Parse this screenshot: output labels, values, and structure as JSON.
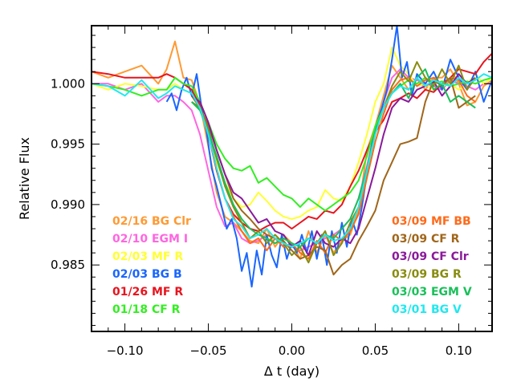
{
  "chart_data": {
    "type": "line",
    "title": "",
    "xlabel": "Δ t (day)",
    "ylabel": "Relative Flux",
    "xlim": [
      -0.12,
      0.12
    ],
    "ylim": [
      0.9795,
      1.0048
    ],
    "xticks": [
      -0.1,
      -0.05,
      0.0,
      0.05,
      0.1
    ],
    "xtick_labels": [
      "−0.10",
      "−0.05",
      "0.00",
      "0.05",
      "0.10"
    ],
    "yticks": [
      0.985,
      0.99,
      0.995,
      1.0
    ],
    "ytick_labels": [
      "0.985",
      "0.990",
      "0.995",
      "1.000"
    ],
    "grid": false,
    "legend_placement": "inside, bottom-left and bottom-right columns",
    "series": [
      {
        "name": "02/16 BG Clr",
        "color": "#ff9a33",
        "column": "left",
        "x": [
          -0.12,
          -0.11,
          -0.1,
          -0.09,
          -0.08,
          -0.075,
          -0.07,
          -0.065,
          -0.06,
          -0.055,
          -0.05,
          -0.045,
          -0.04,
          -0.035,
          -0.03,
          -0.025,
          -0.02,
          -0.015,
          -0.01,
          -0.005,
          0.0,
          0.005,
          0.01,
          0.015,
          0.02,
          0.025,
          0.03,
          0.035,
          0.04,
          0.045,
          0.05,
          0.055,
          0.06,
          0.065,
          0.07,
          0.075,
          0.08,
          0.085,
          0.09,
          0.095,
          0.1,
          0.105,
          0.11,
          0.115,
          0.12
        ],
        "y": [
          1.001,
          1.0005,
          1.001,
          1.0015,
          1.0,
          1.0012,
          1.0035,
          1.0005,
          1.0003,
          0.9983,
          0.9948,
          0.991,
          0.989,
          0.9885,
          0.9878,
          0.987,
          0.9868,
          0.988,
          0.9865,
          0.9875,
          0.9868,
          0.9855,
          0.9878,
          0.986,
          0.9875,
          0.986,
          0.987,
          0.9875,
          0.9895,
          0.9945,
          0.9965,
          0.999,
          1.0015,
          1.0005,
          0.9995,
          1.0005,
          0.9995,
          1.0005,
          1.0005,
          1.0012,
          1.0,
          0.9982,
          0.9985,
          0.9998,
          1.0003
        ]
      },
      {
        "name": "02/10 EGM I",
        "color": "#ff66e0",
        "column": "left",
        "x": [
          -0.12,
          -0.11,
          -0.1,
          -0.09,
          -0.08,
          -0.075,
          -0.07,
          -0.065,
          -0.06,
          -0.055,
          -0.05,
          -0.045,
          -0.04,
          -0.035,
          -0.03,
          -0.025,
          -0.02,
          -0.015,
          -0.01,
          -0.005,
          0.0,
          0.005,
          0.01,
          0.015,
          0.02,
          0.025,
          0.03,
          0.035,
          0.04,
          0.045,
          0.05,
          0.055,
          0.06,
          0.065,
          0.07,
          0.075,
          0.08,
          0.085,
          0.09,
          0.095,
          0.1,
          0.105,
          0.11,
          0.115,
          0.12
        ],
        "y": [
          1.0,
          1.0,
          0.9995,
          1.0,
          0.9985,
          0.999,
          0.999,
          0.9985,
          0.9978,
          0.9958,
          0.9928,
          0.9898,
          0.9882,
          0.9885,
          0.9872,
          0.9868,
          0.987,
          0.9875,
          0.9872,
          0.9868,
          0.9865,
          0.9862,
          0.9865,
          0.9868,
          0.9872,
          0.9875,
          0.988,
          0.9888,
          0.9905,
          0.9932,
          0.9962,
          0.9985,
          1.0005,
          1.0012,
          1.0005,
          1.0003,
          1.0,
          0.9998,
          0.9995,
          1.0003,
          1.0,
          0.9998,
          0.9995,
          1.0,
          1.0
        ]
      },
      {
        "name": "02/03 MF R",
        "color": "#ffff33",
        "column": "left",
        "x": [
          -0.12,
          -0.11,
          -0.1,
          -0.09,
          -0.08,
          -0.075,
          -0.07,
          -0.065,
          -0.06,
          -0.055,
          -0.05,
          -0.045,
          -0.04,
          -0.035,
          -0.03,
          -0.025,
          -0.02,
          -0.015,
          -0.01,
          -0.005,
          0.0,
          0.005,
          0.01,
          0.015,
          0.02,
          0.025,
          0.03,
          0.035,
          0.04,
          0.045,
          0.05,
          0.055,
          0.06,
          0.065,
          0.07,
          0.075,
          0.08,
          0.085,
          0.09,
          0.095,
          0.1,
          0.105,
          0.11,
          0.115,
          0.12
        ],
        "y": [
          1.0,
          0.9995,
          1.0,
          0.9998,
          0.9995,
          0.9995,
          1.0,
          0.9995,
          0.9992,
          0.998,
          0.996,
          0.9935,
          0.9918,
          0.9905,
          0.9898,
          0.99,
          0.991,
          0.9903,
          0.9895,
          0.989,
          0.9888,
          0.989,
          0.9895,
          0.9898,
          0.9912,
          0.9905,
          0.9903,
          0.9915,
          0.9935,
          0.9958,
          0.9985,
          1.0,
          1.003,
          1.0015,
          1.0008,
          0.9998,
          1.0,
          0.9995,
          0.9998,
          1.0,
          0.9995,
          1.0,
          1.0008,
          1.0,
          1.0005
        ]
      },
      {
        "name": "02/03 BG B",
        "color": "#1a66ff",
        "column": "left",
        "x": [
          -0.075,
          -0.072,
          -0.069,
          -0.066,
          -0.063,
          -0.06,
          -0.057,
          -0.054,
          -0.051,
          -0.048,
          -0.045,
          -0.042,
          -0.039,
          -0.036,
          -0.033,
          -0.03,
          -0.027,
          -0.024,
          -0.021,
          -0.018,
          -0.015,
          -0.012,
          -0.009,
          -0.006,
          -0.003,
          0.0,
          0.003,
          0.006,
          0.009,
          0.012,
          0.015,
          0.018,
          0.021,
          0.024,
          0.027,
          0.03,
          0.033,
          0.036,
          0.039,
          0.042,
          0.045,
          0.048,
          0.051,
          0.054,
          0.057,
          0.06,
          0.063,
          0.066,
          0.069,
          0.072,
          0.075,
          0.08,
          0.085,
          0.09,
          0.095,
          0.1,
          0.105,
          0.11,
          0.115,
          0.12
        ],
        "y": [
          0.9985,
          0.9992,
          0.9978,
          0.9995,
          1.0005,
          0.999,
          1.0008,
          0.998,
          0.996,
          0.993,
          0.9915,
          0.9898,
          0.988,
          0.9888,
          0.9872,
          0.9845,
          0.986,
          0.9832,
          0.9862,
          0.9842,
          0.9875,
          0.9858,
          0.9848,
          0.9875,
          0.9855,
          0.9868,
          0.986,
          0.9875,
          0.986,
          0.9878,
          0.9855,
          0.9875,
          0.985,
          0.9878,
          0.986,
          0.9885,
          0.9865,
          0.9888,
          0.9875,
          0.9898,
          0.9925,
          0.995,
          0.9968,
          0.998,
          0.9995,
          1.002,
          1.0048,
          1.0005,
          1.0018,
          0.999,
          1.0008,
          1.0,
          1.001,
          0.9995,
          1.002,
          1.0005,
          0.9995,
          1.001,
          0.9985,
          1.0003
        ]
      },
      {
        "name": "01/26 MF R",
        "color": "#e8141e",
        "column": "left",
        "x": [
          -0.12,
          -0.11,
          -0.1,
          -0.09,
          -0.08,
          -0.075,
          -0.07,
          -0.065,
          -0.06,
          -0.055,
          -0.05,
          -0.045,
          -0.04,
          -0.035,
          -0.03,
          -0.025,
          -0.02,
          -0.015,
          -0.01,
          -0.005,
          0.0,
          0.005,
          0.01,
          0.015,
          0.02,
          0.025,
          0.03,
          0.035,
          0.04,
          0.045,
          0.05,
          0.055,
          0.06,
          0.065,
          0.07,
          0.075,
          0.08,
          0.085,
          0.09,
          0.095,
          0.1,
          0.105,
          0.11,
          0.115,
          0.12
        ],
        "y": [
          1.001,
          1.0008,
          1.0005,
          1.0005,
          1.0005,
          1.0008,
          1.0005,
          1.0,
          0.9995,
          0.9982,
          0.9958,
          0.9928,
          0.9905,
          0.9892,
          0.9885,
          0.988,
          0.9878,
          0.9882,
          0.9885,
          0.9885,
          0.988,
          0.9885,
          0.989,
          0.9888,
          0.9895,
          0.9893,
          0.99,
          0.9915,
          0.9928,
          0.9945,
          0.996,
          0.997,
          0.9985,
          0.9988,
          0.9992,
          0.9988,
          0.9995,
          0.9993,
          1.0,
          1.0005,
          1.0012,
          1.001,
          1.0008,
          1.0018,
          1.0025
        ]
      },
      {
        "name": "01/18 CF R",
        "color": "#33ee22",
        "column": "left",
        "x": [
          -0.12,
          -0.11,
          -0.1,
          -0.09,
          -0.08,
          -0.075,
          -0.07,
          -0.065,
          -0.06,
          -0.055,
          -0.05,
          -0.045,
          -0.04,
          -0.035,
          -0.03,
          -0.025,
          -0.02,
          -0.015,
          -0.01,
          -0.005,
          0.0,
          0.005,
          0.01,
          0.015,
          0.02,
          0.025,
          0.03,
          0.035,
          0.04,
          0.045,
          0.05,
          0.055,
          0.06,
          0.065,
          0.07,
          0.075,
          0.08,
          0.085,
          0.09,
          0.095,
          0.1,
          0.105,
          0.11,
          0.115,
          0.12
        ],
        "y": [
          1.0,
          0.9998,
          0.9995,
          0.999,
          0.9995,
          0.9995,
          1.0005,
          1.0,
          0.9998,
          0.9985,
          0.9968,
          0.995,
          0.9938,
          0.993,
          0.9928,
          0.9932,
          0.9918,
          0.9922,
          0.9915,
          0.9908,
          0.9905,
          0.9898,
          0.9905,
          0.99,
          0.9895,
          0.99,
          0.9905,
          0.991,
          0.992,
          0.994,
          0.9965,
          0.998,
          0.9992,
          0.9998,
          1.0003,
          1.0,
          1.0005,
          1.0,
          1.0002,
          0.9998,
          1.0,
          1.0002,
          1.0,
          1.0003,
          1.0005
        ]
      },
      {
        "name": "03/09 MF BB",
        "color": "#ff6a1a",
        "column": "right",
        "x": [
          -0.06,
          -0.055,
          -0.05,
          -0.045,
          -0.04,
          -0.035,
          -0.03,
          -0.025,
          -0.02,
          -0.015,
          -0.01,
          -0.005,
          0.0,
          0.005,
          0.01,
          0.015,
          0.02,
          0.025,
          0.03,
          0.035,
          0.04,
          0.045,
          0.05,
          0.055,
          0.06,
          0.065,
          0.07,
          0.075,
          0.08,
          0.085,
          0.09,
          0.095,
          0.1,
          0.105,
          0.11
        ],
        "y": [
          0.999,
          0.998,
          0.996,
          0.993,
          0.9905,
          0.989,
          0.9878,
          0.9868,
          0.9872,
          0.9862,
          0.9872,
          0.9865,
          0.9868,
          0.986,
          0.9855,
          0.987,
          0.986,
          0.9875,
          0.987,
          0.9878,
          0.9892,
          0.9922,
          0.9952,
          0.9975,
          0.9995,
          1.0003,
          1.0005,
          0.9998,
          1.0003,
          1.0005,
          0.9998,
          1.0005,
          1.0003,
          0.999,
          0.9985
        ]
      },
      {
        "name": "03/09 CF R",
        "color": "#a0661a",
        "column": "right",
        "x": [
          -0.06,
          -0.055,
          -0.05,
          -0.045,
          -0.04,
          -0.035,
          -0.03,
          -0.025,
          -0.02,
          -0.015,
          -0.01,
          -0.005,
          0.0,
          0.005,
          0.01,
          0.015,
          0.02,
          0.025,
          0.03,
          0.035,
          0.04,
          0.045,
          0.05,
          0.055,
          0.06,
          0.065,
          0.07,
          0.075,
          0.08,
          0.085,
          0.09,
          0.095,
          0.1,
          0.105,
          0.11
        ],
        "y": [
          0.999,
          0.998,
          0.9965,
          0.9945,
          0.9925,
          0.9905,
          0.9895,
          0.9888,
          0.988,
          0.9875,
          0.9872,
          0.987,
          0.9862,
          0.9855,
          0.9858,
          0.9865,
          0.9862,
          0.9842,
          0.985,
          0.9855,
          0.987,
          0.9882,
          0.9895,
          0.992,
          0.9935,
          0.995,
          0.9952,
          0.9955,
          0.9985,
          1.0003,
          0.9998,
          1.0005,
          0.998,
          0.9985,
          0.999
        ]
      },
      {
        "name": "03/09 CF Clr",
        "color": "#8a1a9a",
        "column": "right",
        "x": [
          -0.06,
          -0.055,
          -0.05,
          -0.045,
          -0.04,
          -0.035,
          -0.03,
          -0.025,
          -0.02,
          -0.015,
          -0.01,
          -0.005,
          0.0,
          0.005,
          0.01,
          0.015,
          0.02,
          0.025,
          0.03,
          0.035,
          0.04,
          0.045,
          0.05,
          0.055,
          0.06,
          0.065,
          0.07,
          0.075,
          0.08,
          0.085,
          0.09,
          0.095,
          0.1,
          0.105,
          0.11
        ],
        "y": [
          0.999,
          0.9985,
          0.9968,
          0.9945,
          0.9925,
          0.991,
          0.9905,
          0.9895,
          0.9885,
          0.9888,
          0.9878,
          0.9875,
          0.9865,
          0.987,
          0.9858,
          0.9878,
          0.9868,
          0.9865,
          0.9872,
          0.9868,
          0.988,
          0.9905,
          0.993,
          0.9958,
          0.998,
          0.9988,
          0.9985,
          0.9995,
          0.9998,
          1.0002,
          0.999,
          0.9998,
          1.0008,
          1.0,
          1.0005
        ]
      },
      {
        "name": "03/09 BG R",
        "color": "#888c10",
        "column": "right",
        "x": [
          -0.06,
          -0.055,
          -0.05,
          -0.045,
          -0.04,
          -0.035,
          -0.03,
          -0.025,
          -0.02,
          -0.015,
          -0.01,
          -0.005,
          0.0,
          0.005,
          0.01,
          0.015,
          0.02,
          0.025,
          0.03,
          0.035,
          0.04,
          0.045,
          0.05,
          0.055,
          0.06,
          0.065,
          0.07,
          0.075,
          0.08,
          0.085,
          0.09,
          0.095,
          0.1,
          0.105,
          0.11
        ],
        "y": [
          0.9985,
          0.998,
          0.9962,
          0.9938,
          0.9915,
          0.9898,
          0.9885,
          0.9872,
          0.9878,
          0.9868,
          0.9875,
          0.9868,
          0.9858,
          0.9865,
          0.9852,
          0.9868,
          0.9878,
          0.9858,
          0.9868,
          0.9885,
          0.9898,
          0.9928,
          0.996,
          0.998,
          0.9998,
          1.001,
          1.0002,
          1.0018,
          1.0005,
          0.9998,
          1.0012,
          1.0,
          1.0015,
          0.9995,
          1.0005
        ]
      },
      {
        "name": "03/03 EGM V",
        "color": "#1ac05a",
        "column": "right",
        "x": [
          -0.06,
          -0.055,
          -0.05,
          -0.045,
          -0.04,
          -0.035,
          -0.03,
          -0.025,
          -0.02,
          -0.015,
          -0.01,
          -0.005,
          0.0,
          0.005,
          0.01,
          0.015,
          0.02,
          0.025,
          0.03,
          0.035,
          0.04,
          0.045,
          0.05,
          0.055,
          0.06,
          0.065,
          0.07,
          0.075,
          0.08,
          0.085,
          0.09,
          0.095,
          0.1,
          0.105,
          0.11
        ],
        "y": [
          0.9985,
          0.9978,
          0.996,
          0.994,
          0.9918,
          0.99,
          0.9888,
          0.988,
          0.9875,
          0.9872,
          0.9868,
          0.9872,
          0.9868,
          0.9865,
          0.9872,
          0.9868,
          0.9875,
          0.9872,
          0.988,
          0.9888,
          0.9905,
          0.993,
          0.996,
          0.998,
          0.9992,
          1.0,
          0.9988,
          1.0005,
          1.0012,
          0.9995,
          1.0,
          0.9985,
          0.999,
          0.9985,
          0.998
        ]
      },
      {
        "name": "03/01 BG V",
        "color": "#22e8ee",
        "column": "right",
        "x": [
          -0.12,
          -0.11,
          -0.1,
          -0.09,
          -0.08,
          -0.075,
          -0.07,
          -0.065,
          -0.06,
          -0.055,
          -0.05,
          -0.045,
          -0.04,
          -0.035,
          -0.03,
          -0.025,
          -0.02,
          -0.015,
          -0.01,
          -0.005,
          0.0,
          0.005,
          0.01,
          0.015,
          0.02,
          0.025,
          0.03,
          0.035,
          0.04,
          0.045,
          0.05,
          0.055,
          0.06,
          0.065,
          0.07,
          0.075,
          0.08,
          0.085,
          0.09,
          0.095,
          0.1,
          0.105,
          0.11,
          0.115,
          0.12
        ],
        "y": [
          1.0,
          0.9998,
          0.999,
          1.0003,
          0.9988,
          0.9992,
          0.9998,
          0.9995,
          0.9992,
          0.998,
          0.9958,
          0.993,
          0.9905,
          0.9888,
          0.9882,
          0.9872,
          0.9875,
          0.988,
          0.9872,
          0.9868,
          0.9865,
          0.9868,
          0.9872,
          0.9868,
          0.9875,
          0.987,
          0.9872,
          0.988,
          0.9898,
          0.9928,
          0.9958,
          0.998,
          0.9992,
          0.9998,
          0.9995,
          1.0005,
          0.9998,
          1.0003,
          1.0,
          0.9998,
          1.0005,
          1.0,
          1.0003,
          1.0008,
          1.0005
        ]
      }
    ]
  }
}
